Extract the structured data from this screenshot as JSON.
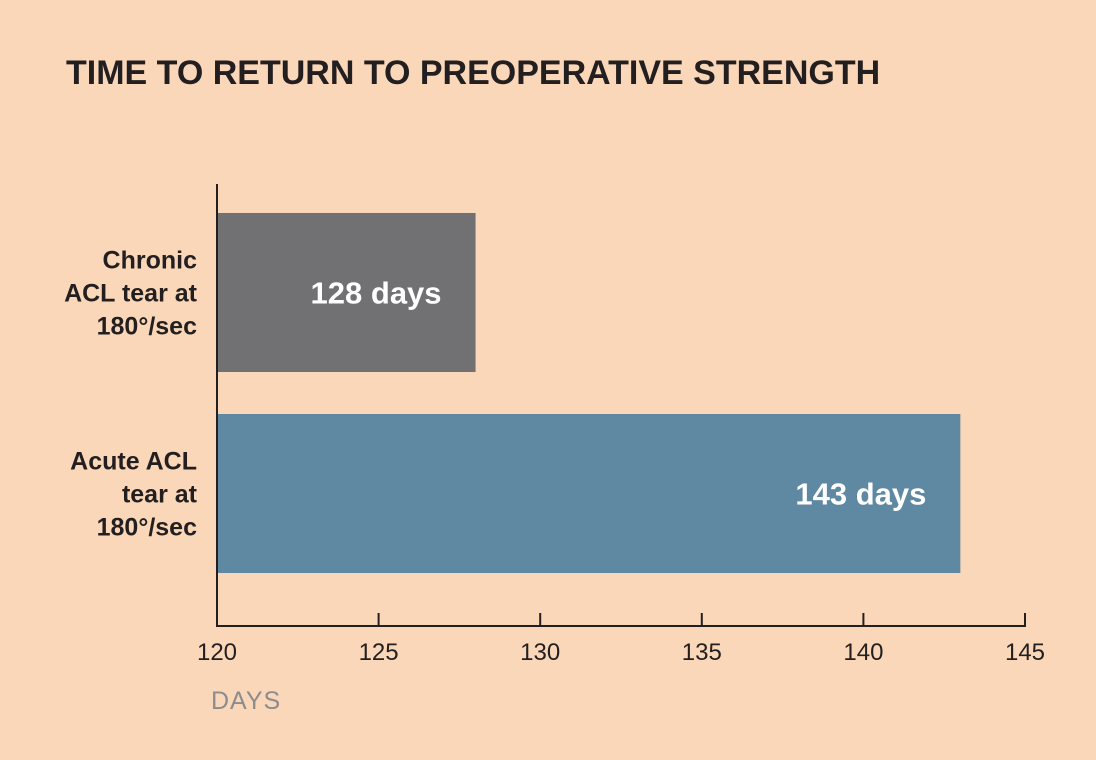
{
  "chart_data": {
    "type": "bar",
    "orientation": "horizontal",
    "title": "TIME TO RETURN TO PREOPERATIVE STRENGTH",
    "xlabel": "DAYS",
    "ylabel": "",
    "categories": [
      [
        "Chronic",
        "ACL tear at",
        "180°/sec"
      ],
      [
        "Acute ACL",
        "tear at",
        "180°/sec"
      ]
    ],
    "values": [
      128,
      143
    ],
    "data_labels": [
      "128 days",
      "143 days"
    ],
    "bar_colors": [
      "#717073",
      "#5f88a2"
    ],
    "xlim": [
      120,
      145
    ],
    "xticks": [
      120,
      125,
      130,
      135,
      140,
      145
    ],
    "grid": false,
    "legend": "none"
  },
  "colors": {
    "background": "#fad7b8",
    "axis": "#231f20",
    "title": "#231f20",
    "xlabel": "#8c8c8f",
    "data_label": "#ffffff"
  }
}
